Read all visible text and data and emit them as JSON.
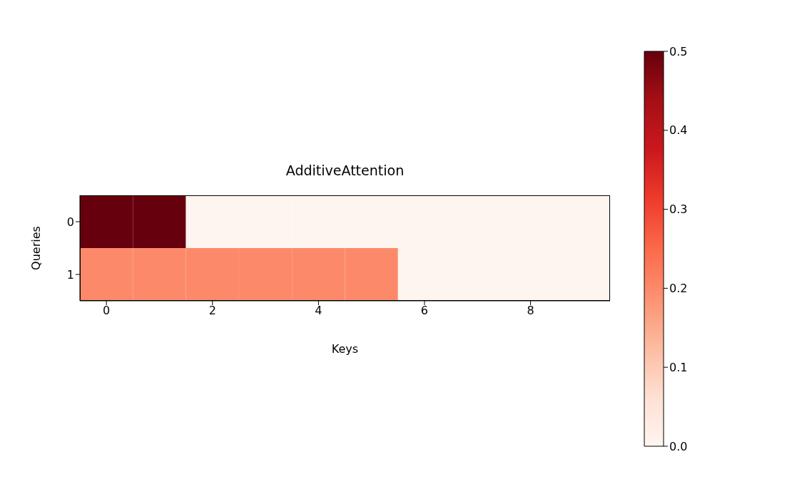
{
  "chart_data": {
    "type": "heatmap",
    "title": "AdditiveAttention",
    "xlabel": "Keys",
    "ylabel": "Queries",
    "categories": [
      "0",
      null,
      "2",
      null,
      "4",
      null,
      "6",
      null,
      "8",
      null
    ],
    "y_categories": [
      "0",
      "1"
    ],
    "cells": [
      [
        0.5,
        0.5,
        0,
        0,
        0,
        0,
        0,
        0,
        0,
        0
      ],
      [
        0.2,
        0.2,
        0.2,
        0.2,
        0.2,
        0.2,
        0,
        0,
        0,
        0
      ]
    ],
    "clim": [
      0,
      0.5
    ],
    "cticks": [
      {
        "value": 0,
        "label": "0.0"
      },
      0.1,
      0.2,
      0.3,
      0.4,
      0.5
    ]
  }
}
